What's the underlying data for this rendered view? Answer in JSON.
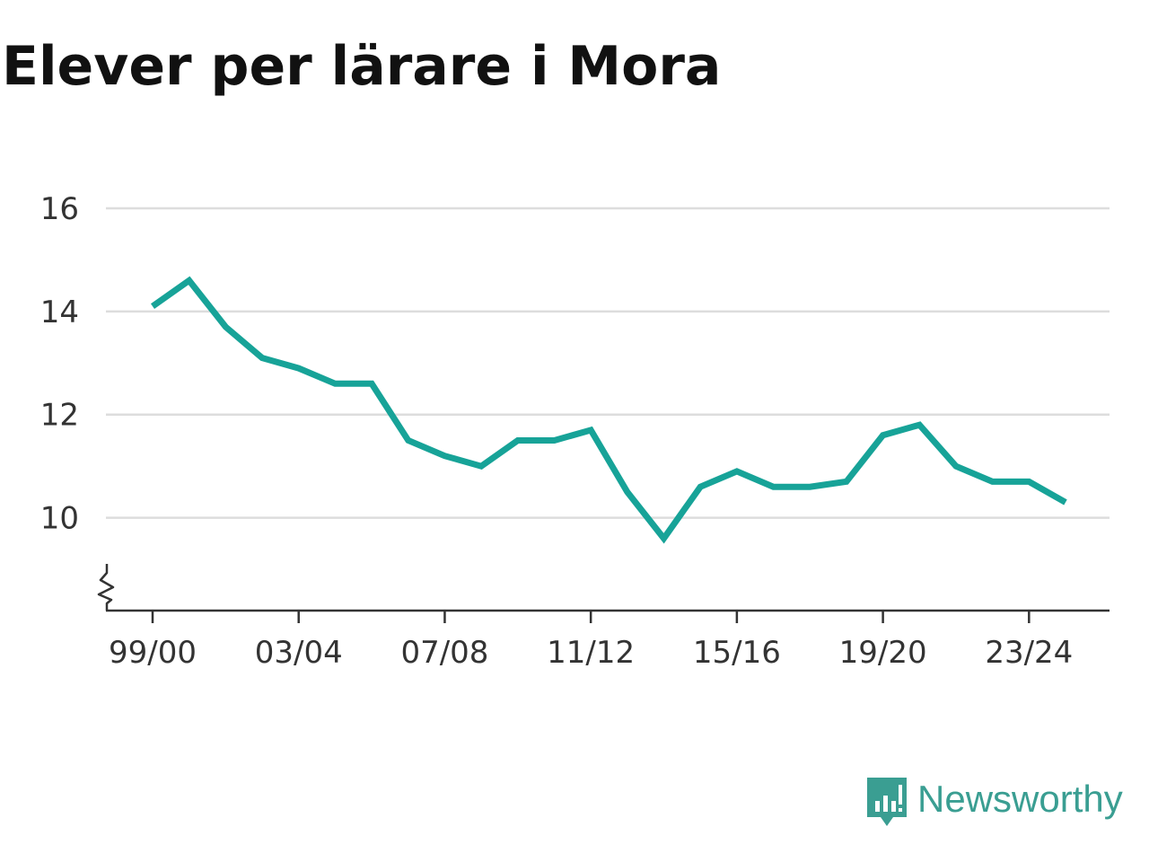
{
  "chart_data": {
    "type": "line",
    "title": "Elever per lärare i Mora",
    "xlabel": "",
    "ylabel": "",
    "x": [
      "99/00",
      "00/01",
      "01/02",
      "02/03",
      "03/04",
      "04/05",
      "05/06",
      "06/07",
      "07/08",
      "08/09",
      "09/10",
      "10/11",
      "11/12",
      "12/13",
      "13/14",
      "14/15",
      "15/16",
      "16/17",
      "17/18",
      "18/19",
      "19/20",
      "20/21",
      "21/22",
      "22/23",
      "23/24",
      "24/25"
    ],
    "x_tick_labels": [
      "99/00",
      "03/04",
      "07/08",
      "11/12",
      "15/16",
      "19/20",
      "23/24"
    ],
    "y_tick_labels": [
      "10",
      "12",
      "14",
      "16"
    ],
    "ylim": [
      8.2,
      16
    ],
    "y_axis_break": true,
    "grid": "horizontal",
    "series": [
      {
        "color": "#17a398",
        "values": [
          14.1,
          14.6,
          13.7,
          13.1,
          12.9,
          12.6,
          12.6,
          11.5,
          11.2,
          11.0,
          11.5,
          11.5,
          11.7,
          10.5,
          9.6,
          10.6,
          10.9,
          10.6,
          10.6,
          10.7,
          11.6,
          11.8,
          11.0,
          10.7,
          10.7,
          10.3
        ]
      }
    ]
  },
  "brand": {
    "name": "Newsworthy",
    "icon": "newsworthy-logo-icon",
    "color": "#3a9e92"
  }
}
